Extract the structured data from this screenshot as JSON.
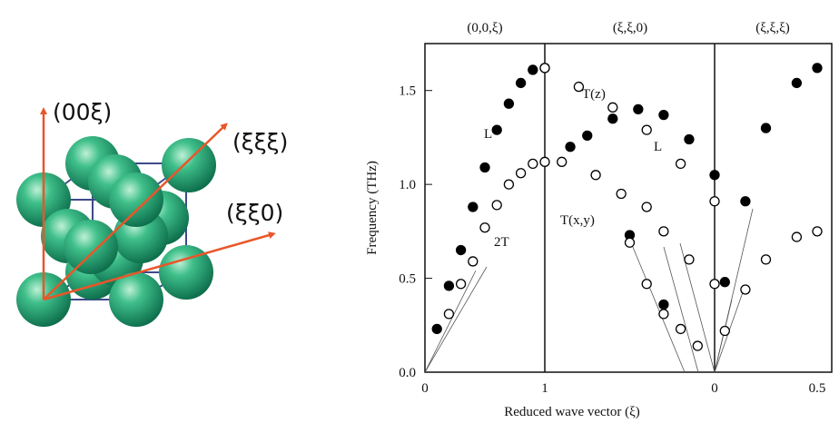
{
  "crystal": {
    "dir_001": "(00ξ)",
    "dir_111": "(ξξξ)",
    "dir_110": "(ξξ0)",
    "arrow_color": "#e8562a",
    "sphere_color": "#1f9b6e",
    "cube_color": "#3c4a8a"
  },
  "chart_data": {
    "type": "scatter",
    "xlabel": "Reduced wave vector (ξ)",
    "ylabel": "Frequency (THz)",
    "ylim": [
      0,
      1.75
    ],
    "yticks": [
      "0.0",
      "0.5",
      "1.0",
      "1.5"
    ],
    "xticks": [
      "0",
      "1",
      "0",
      "0.5"
    ],
    "panels": [
      {
        "title": "(0,0,ξ)",
        "xrange": [
          0,
          1
        ]
      },
      {
        "title": "(ξ,ξ,0)",
        "xrange": [
          1,
          0
        ]
      },
      {
        "title": "(ξ,ξ,ξ)",
        "xrange": [
          0,
          0.5
        ]
      }
    ],
    "annotations": [
      "L",
      "2T",
      "T(z)",
      "L",
      "T(x,y)"
    ],
    "series": [
      {
        "marker": "filled",
        "panels": [
          [
            [
              0.1,
              0.23
            ],
            [
              0.2,
              0.46
            ],
            [
              0.3,
              0.65
            ],
            [
              0.4,
              0.88
            ],
            [
              0.5,
              1.09
            ],
            [
              0.6,
              1.29
            ],
            [
              0.7,
              1.43
            ],
            [
              0.8,
              1.54
            ],
            [
              0.9,
              1.61
            ],
            [
              1.0,
              1.62
            ]
          ],
          [
            [
              0.85,
              1.2
            ],
            [
              0.75,
              1.26
            ],
            [
              0.6,
              1.35
            ],
            [
              0.45,
              1.4
            ],
            [
              0.3,
              1.37
            ],
            [
              0.15,
              1.24
            ],
            [
              0.0,
              1.05
            ]
          ],
          [
            [
              0.5,
              0.73
            ],
            [
              0.3,
              0.36
            ]
          ],
          [
            [
              0.05,
              0.48
            ],
            [
              0.15,
              0.91
            ],
            [
              0.25,
              1.3
            ],
            [
              0.4,
              1.54
            ],
            [
              0.5,
              1.62
            ]
          ]
        ]
      },
      {
        "marker": "open",
        "panels": [
          [
            [
              0.2,
              0.31
            ],
            [
              0.3,
              0.47
            ],
            [
              0.4,
              0.59
            ],
            [
              0.5,
              0.77
            ],
            [
              0.6,
              0.89
            ],
            [
              0.7,
              1.0
            ],
            [
              0.8,
              1.06
            ],
            [
              0.9,
              1.11
            ],
            [
              1.0,
              1.12
            ]
          ],
          [
            [
              1.0,
              1.62
            ],
            [
              0.8,
              1.52
            ],
            [
              0.6,
              1.41
            ],
            [
              0.4,
              1.29
            ],
            [
              0.2,
              1.11
            ],
            [
              0.0,
              0.91
            ]
          ],
          [
            [
              0.9,
              1.12
            ],
            [
              0.7,
              1.05
            ],
            [
              0.55,
              0.95
            ],
            [
              0.4,
              0.88
            ],
            [
              0.3,
              0.75
            ],
            [
              0.15,
              0.6
            ],
            [
              0.0,
              0.47
            ]
          ],
          [
            [
              0.5,
              0.69
            ],
            [
              0.4,
              0.47
            ],
            [
              0.3,
              0.31
            ],
            [
              0.2,
              0.23
            ],
            [
              0.1,
              0.14
            ]
          ],
          [
            [
              0.05,
              0.22
            ],
            [
              0.15,
              0.44
            ],
            [
              0.25,
              0.6
            ],
            [
              0.4,
              0.72
            ],
            [
              0.5,
              0.75
            ]
          ]
        ]
      }
    ]
  }
}
